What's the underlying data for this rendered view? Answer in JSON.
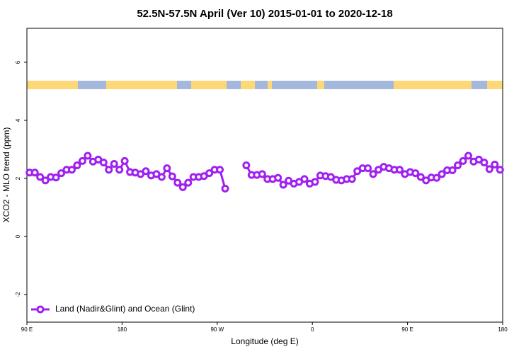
{
  "chart_data": {
    "type": "line",
    "title": "52.5N-57.5N April (Ver 10)   2015-01-01 to 2020-12-18",
    "x_label": "Longitude (deg E)",
    "y_label": "XCO2 - MLO trend (ppm)",
    "xlim": [
      90,
      540
    ],
    "ylim": [
      -2.95,
      7.17
    ],
    "xticks": [
      {
        "value": 90,
        "label": "90 E"
      },
      180,
      {
        "value": 270,
        "label": "90 W"
      },
      {
        "value": 360,
        "label": "0"
      },
      {
        "value": 450,
        "label": "90 E"
      },
      {
        "value": 540,
        "label": "180"
      }
    ],
    "yticks": [
      -2,
      0,
      2,
      4,
      6
    ],
    "legend": "bottom-left",
    "x": [
      92.5,
      97.5,
      102.5,
      107.5,
      112.5,
      117.5,
      122.5,
      127.5,
      132.5,
      137.5,
      142.5,
      147.5,
      152.5,
      157.5,
      162.5,
      167.5,
      172.5,
      177.5,
      182.5,
      187.5,
      192.5,
      197.5,
      202.5,
      207.5,
      212.5,
      217.5,
      222.5,
      227.5,
      232.5,
      237.5,
      242.5,
      247.5,
      252.5,
      257.5,
      262.5,
      267.5,
      272.5,
      277.5,
      282.5,
      287.5,
      292.5,
      297.5,
      302.5,
      307.5,
      312.5,
      317.5,
      322.5,
      327.5,
      332.5,
      337.5,
      342.5,
      347.5,
      352.5,
      357.5,
      362.5,
      367.5,
      372.5,
      377.5,
      382.5,
      387.5,
      392.5,
      397.5,
      402.5,
      407.5,
      412.5,
      417.5,
      422.5,
      427.5,
      432.5,
      437.5,
      442.5,
      447.5,
      452.5,
      457.5,
      462.5,
      467.5,
      472.5,
      477.5,
      482.5,
      487.5,
      492.5,
      497.5,
      502.5,
      507.5,
      512.5,
      517.5,
      522.5,
      527.5,
      532.5,
      537.5
    ],
    "series": [
      {
        "name": "Land (Nadir&Glint) and Ocean (Glint)",
        "color": "#a020f0",
        "values": [
          2.2,
          2.2,
          2.05,
          1.93,
          2.05,
          2.03,
          2.18,
          2.3,
          2.3,
          2.45,
          2.6,
          2.78,
          2.58,
          2.65,
          2.55,
          2.3,
          2.5,
          2.3,
          2.6,
          2.22,
          2.2,
          2.15,
          2.25,
          2.1,
          2.15,
          2.05,
          2.35,
          2.07,
          1.85,
          1.7,
          1.85,
          2.05,
          2.05,
          2.08,
          2.18,
          2.3,
          2.3,
          1.65,
          null,
          null,
          null,
          2.45,
          2.12,
          2.12,
          2.15,
          1.98,
          1.98,
          2.02,
          1.78,
          1.92,
          1.82,
          1.88,
          1.98,
          1.82,
          1.88,
          2.1,
          2.08,
          2.05,
          1.95,
          1.93,
          1.98,
          1.98,
          2.25,
          2.35,
          2.35,
          2.15,
          2.3,
          2.4,
          2.35,
          2.3,
          2.3,
          2.15,
          2.22,
          2.18,
          2.05,
          1.93,
          2.03,
          2.02,
          2.15,
          2.28,
          2.28,
          2.45,
          2.6,
          2.78,
          2.58,
          2.65,
          2.55,
          2.32,
          2.48,
          2.3
        ]
      }
    ]
  }
}
